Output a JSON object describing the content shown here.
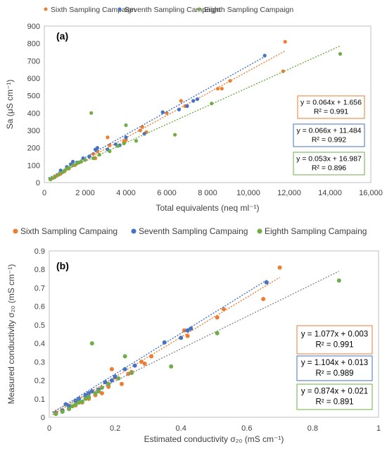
{
  "chart_data": [
    {
      "type": "scatter",
      "panel_label": "(a)",
      "xlabel": "Total equivalents (neq ml⁻¹)",
      "ylabel": "Sa (μS cm⁻¹)",
      "xlim": [
        0,
        16000
      ],
      "ylim": [
        0,
        900
      ],
      "xticks": [
        0,
        2000,
        4000,
        6000,
        8000,
        10000,
        12000,
        14000,
        16000
      ],
      "xtick_labels": [
        "0",
        "2 000",
        "4 000",
        "6 000",
        "8 000",
        "10,000",
        "12,000",
        "14,000",
        "16,000"
      ],
      "yticks": [
        0,
        100,
        200,
        300,
        400,
        500,
        600,
        700,
        800,
        900
      ],
      "ytick_labels": [
        "0",
        "100",
        "200",
        "300",
        "400",
        "500",
        "600",
        "700",
        "800",
        "900"
      ],
      "grid": "none",
      "legend_position": "top",
      "series": [
        {
          "name": "Sixth Sampling Campaign",
          "color": "#ED7D31",
          "points": [
            [
              400,
              25
            ],
            [
              600,
              38
            ],
            [
              800,
              50
            ],
            [
              1000,
              65
            ],
            [
              1200,
              80
            ],
            [
              1500,
              100
            ],
            [
              1800,
              120
            ],
            [
              2000,
              130
            ],
            [
              2200,
              150
            ],
            [
              2400,
              165
            ],
            [
              2600,
              180
            ],
            [
              3100,
              260
            ],
            [
              3200,
              215
            ],
            [
              3900,
              235
            ],
            [
              4000,
              245
            ],
            [
              4700,
              300
            ],
            [
              4800,
              320
            ],
            [
              5000,
              290
            ],
            [
              6000,
              400
            ],
            [
              6700,
              470
            ],
            [
              6900,
              440
            ],
            [
              8500,
              540
            ],
            [
              8700,
              540
            ],
            [
              9100,
              585
            ],
            [
              11700,
              640
            ],
            [
              11800,
              810
            ],
            [
              2500,
              140
            ],
            [
              1300,
              105
            ]
          ],
          "trendline": {
            "slope": 0.064,
            "intercept": 1.656,
            "x_range": [
              200,
              11800
            ]
          },
          "equation": "y = 0.064x + 1.656",
          "r2_label": "R² = 0.991"
        },
        {
          "name": "Seventh Sampling Campaign",
          "color": "#4472C4",
          "points": [
            [
              300,
              20
            ],
            [
              500,
              30
            ],
            [
              700,
              45
            ],
            [
              900,
              60
            ],
            [
              1100,
              90
            ],
            [
              1300,
              105
            ],
            [
              1600,
              115
            ],
            [
              1900,
              140
            ],
            [
              2200,
              150
            ],
            [
              2500,
              190
            ],
            [
              2600,
              200
            ],
            [
              3100,
              190
            ],
            [
              3500,
              220
            ],
            [
              3700,
              215
            ],
            [
              4000,
              260
            ],
            [
              4900,
              280
            ],
            [
              5800,
              405
            ],
            [
              6600,
              420
            ],
            [
              7000,
              440
            ],
            [
              7300,
              470
            ],
            [
              7500,
              480
            ],
            [
              10800,
              730
            ],
            [
              800,
              70
            ],
            [
              1400,
              120
            ]
          ],
          "trendline": {
            "slope": 0.066,
            "intercept": 11.484,
            "x_range": [
              200,
              10800
            ]
          },
          "equation": "y = 0.066x + 11.484",
          "r2_label": "R² = 0.992"
        },
        {
          "name": "Eighth Sampling Campaign",
          "color": "#70AD47",
          "points": [
            [
              300,
              18
            ],
            [
              500,
              30
            ],
            [
              700,
              45
            ],
            [
              900,
              60
            ],
            [
              1000,
              70
            ],
            [
              1200,
              85
            ],
            [
              1400,
              100
            ],
            [
              1600,
              110
            ],
            [
              1800,
              120
            ],
            [
              2000,
              130
            ],
            [
              2300,
              400
            ],
            [
              2400,
              140
            ],
            [
              2700,
              160
            ],
            [
              3200,
              180
            ],
            [
              3600,
              210
            ],
            [
              3900,
              225
            ],
            [
              4000,
              330
            ],
            [
              4500,
              240
            ],
            [
              6400,
              275
            ],
            [
              8200,
              455
            ],
            [
              14500,
              740
            ],
            [
              1100,
              80
            ],
            [
              1700,
              115
            ]
          ],
          "trendline": {
            "slope": 0.053,
            "intercept": 16.987,
            "x_range": [
              200,
              14500
            ]
          },
          "equation": "y = 0.053x + 16.987",
          "r2_label": "R² = 0.896"
        }
      ]
    },
    {
      "type": "scatter",
      "panel_label": "(b)",
      "xlabel": "Estimated conductivity σ₂₀ (mS cm⁻¹)",
      "ylabel": "Measured conductivity σ₂₀ (mS cm⁻¹)",
      "xlim": [
        0,
        1
      ],
      "ylim": [
        0,
        0.9
      ],
      "xticks": [
        0,
        0.2,
        0.4,
        0.6,
        0.8,
        1
      ],
      "xtick_labels": [
        "0",
        "0.2",
        "0.4",
        "0.6",
        "0.8",
        "1"
      ],
      "yticks": [
        0,
        0.1,
        0.2,
        0.3,
        0.4,
        0.5,
        0.6,
        0.7,
        0.8,
        0.9
      ],
      "ytick_labels": [
        "0",
        "0.1",
        "0.2",
        "0.3",
        "0.4",
        "0.5",
        "0.6",
        "0.7",
        "0.8",
        "0.9"
      ],
      "grid": "none",
      "legend_position": "top",
      "series": [
        {
          "name": "Sixth Sampling Campaing",
          "color": "#ED7D31",
          "points": [
            [
              0.02,
              0.025
            ],
            [
              0.04,
              0.038
            ],
            [
              0.06,
              0.05
            ],
            [
              0.08,
              0.065
            ],
            [
              0.1,
              0.08
            ],
            [
              0.12,
              0.1
            ],
            [
              0.14,
              0.12
            ],
            [
              0.16,
              0.13
            ],
            [
              0.19,
              0.26
            ],
            [
              0.2,
              0.215
            ],
            [
              0.24,
              0.235
            ],
            [
              0.25,
              0.245
            ],
            [
              0.28,
              0.3
            ],
            [
              0.29,
              0.29
            ],
            [
              0.31,
              0.33
            ],
            [
              0.41,
              0.47
            ],
            [
              0.42,
              0.44
            ],
            [
              0.51,
              0.54
            ],
            [
              0.53,
              0.585
            ],
            [
              0.65,
              0.64
            ],
            [
              0.7,
              0.81
            ],
            [
              0.18,
              0.165
            ],
            [
              0.22,
              0.18
            ]
          ],
          "trendline": {
            "slope": 1.077,
            "intercept": 0.003,
            "x_range": [
              0.01,
              0.7
            ]
          },
          "equation": "y = 1.077x + 0.003",
          "r2_label": "R² = 0.991"
        },
        {
          "name": "Seventh Sampling Campaing",
          "color": "#4472C4",
          "points": [
            [
              0.02,
              0.02
            ],
            [
              0.04,
              0.035
            ],
            [
              0.06,
              0.06
            ],
            [
              0.08,
              0.09
            ],
            [
              0.09,
              0.1
            ],
            [
              0.11,
              0.12
            ],
            [
              0.13,
              0.14
            ],
            [
              0.15,
              0.15
            ],
            [
              0.17,
              0.19
            ],
            [
              0.19,
              0.2
            ],
            [
              0.2,
              0.22
            ],
            [
              0.23,
              0.26
            ],
            [
              0.26,
              0.28
            ],
            [
              0.35,
              0.405
            ],
            [
              0.4,
              0.43
            ],
            [
              0.42,
              0.47
            ],
            [
              0.43,
              0.48
            ],
            [
              0.66,
              0.73
            ],
            [
              0.05,
              0.07
            ],
            [
              0.12,
              0.13
            ]
          ],
          "trendline": {
            "slope": 1.104,
            "intercept": 0.013,
            "x_range": [
              0.01,
              0.66
            ]
          },
          "equation": "y = 1.104x + 0.013",
          "r2_label": "R² = 0.989"
        },
        {
          "name": "Eighth Sampling Campaing",
          "color": "#70AD47",
          "points": [
            [
              0.02,
              0.018
            ],
            [
              0.04,
              0.03
            ],
            [
              0.06,
              0.045
            ],
            [
              0.07,
              0.06
            ],
            [
              0.08,
              0.07
            ],
            [
              0.1,
              0.085
            ],
            [
              0.11,
              0.1
            ],
            [
              0.12,
              0.11
            ],
            [
              0.13,
              0.4
            ],
            [
              0.14,
              0.13
            ],
            [
              0.16,
              0.16
            ],
            [
              0.18,
              0.18
            ],
            [
              0.21,
              0.21
            ],
            [
              0.23,
              0.33
            ],
            [
              0.25,
              0.24
            ],
            [
              0.37,
              0.275
            ],
            [
              0.51,
              0.455
            ],
            [
              0.88,
              0.74
            ],
            [
              0.09,
              0.08
            ],
            [
              0.15,
              0.14
            ]
          ],
          "trendline": {
            "slope": 0.874,
            "intercept": 0.021,
            "x_range": [
              0.01,
              0.88
            ]
          },
          "equation": "y = 0.874x + 0.021",
          "r2_label": "R² = 0.891"
        }
      ]
    }
  ]
}
